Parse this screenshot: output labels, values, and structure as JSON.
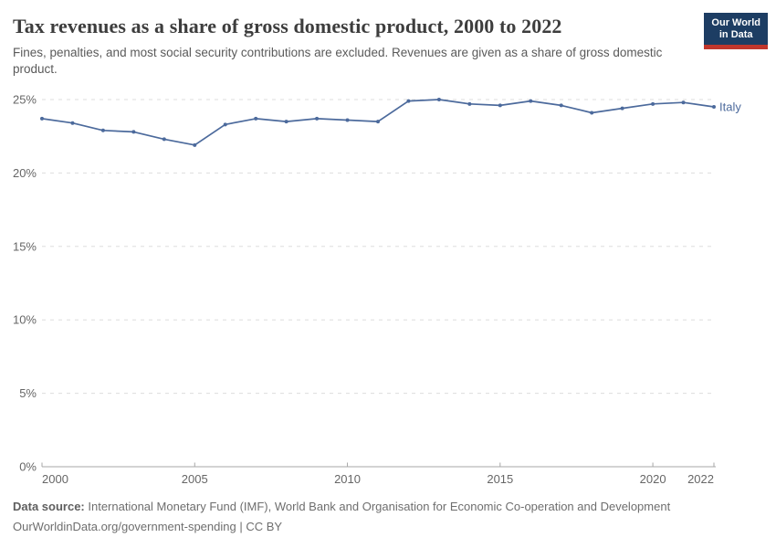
{
  "header": {
    "title": "Tax revenues as a share of gross domestic product, 2000 to 2022",
    "subtitle": "Fines, penalties, and most social security contributions are excluded. Revenues are given as a share of gross domestic product."
  },
  "logo": {
    "line1": "Our World",
    "line2": "in Data"
  },
  "colors": {
    "line": "#4c6a9c",
    "grid": "#dddddd",
    "axis": "#a7a7a7",
    "tick_label": "#666666",
    "title": "#3d3d3d",
    "subtitle": "#5a5a5a",
    "footer": "#6e6e6e",
    "logo_bg": "#1d3d63",
    "logo_red": "#c0362c"
  },
  "chart_data": {
    "type": "line",
    "title": "Tax revenues as a share of gross domestic product, 2000 to 2022",
    "xlabel": "",
    "ylabel": "",
    "unit": "%",
    "x": [
      2000,
      2001,
      2002,
      2003,
      2004,
      2005,
      2006,
      2007,
      2008,
      2009,
      2010,
      2011,
      2012,
      2013,
      2014,
      2015,
      2016,
      2017,
      2018,
      2019,
      2020,
      2021,
      2022
    ],
    "series": [
      {
        "name": "Italy",
        "color": "#4c6a9c",
        "values": [
          23.7,
          23.4,
          22.9,
          22.8,
          22.3,
          21.9,
          23.3,
          23.7,
          23.5,
          23.7,
          23.6,
          23.5,
          24.9,
          25.0,
          24.7,
          24.6,
          24.9,
          24.6,
          24.1,
          24.4,
          24.7,
          24.8,
          24.5
        ]
      }
    ],
    "ylim": [
      0,
      25
    ],
    "yticks": [
      {
        "value": 0,
        "label": "0%"
      },
      {
        "value": 5,
        "label": "5%"
      },
      {
        "value": 10,
        "label": "10%"
      },
      {
        "value": 15,
        "label": "15%"
      },
      {
        "value": 20,
        "label": "20%"
      },
      {
        "value": 25,
        "label": "25%"
      }
    ],
    "xticks": [
      {
        "value": 2000,
        "label": "2000"
      },
      {
        "value": 2005,
        "label": "2005"
      },
      {
        "value": 2010,
        "label": "2010"
      },
      {
        "value": 2015,
        "label": "2015"
      },
      {
        "value": 2020,
        "label": "2020"
      },
      {
        "value": 2022,
        "label": "2022"
      }
    ],
    "grid": "dashed-horizontal",
    "legend": "end-of-line-label"
  },
  "footer": {
    "source_label": "Data source:",
    "source_text": "International Monetary Fund (IMF), World Bank and Organisation for Economic Co-operation and Development",
    "url": "OurWorldinData.org/government-spending",
    "separator": "|",
    "license": "CC BY"
  }
}
